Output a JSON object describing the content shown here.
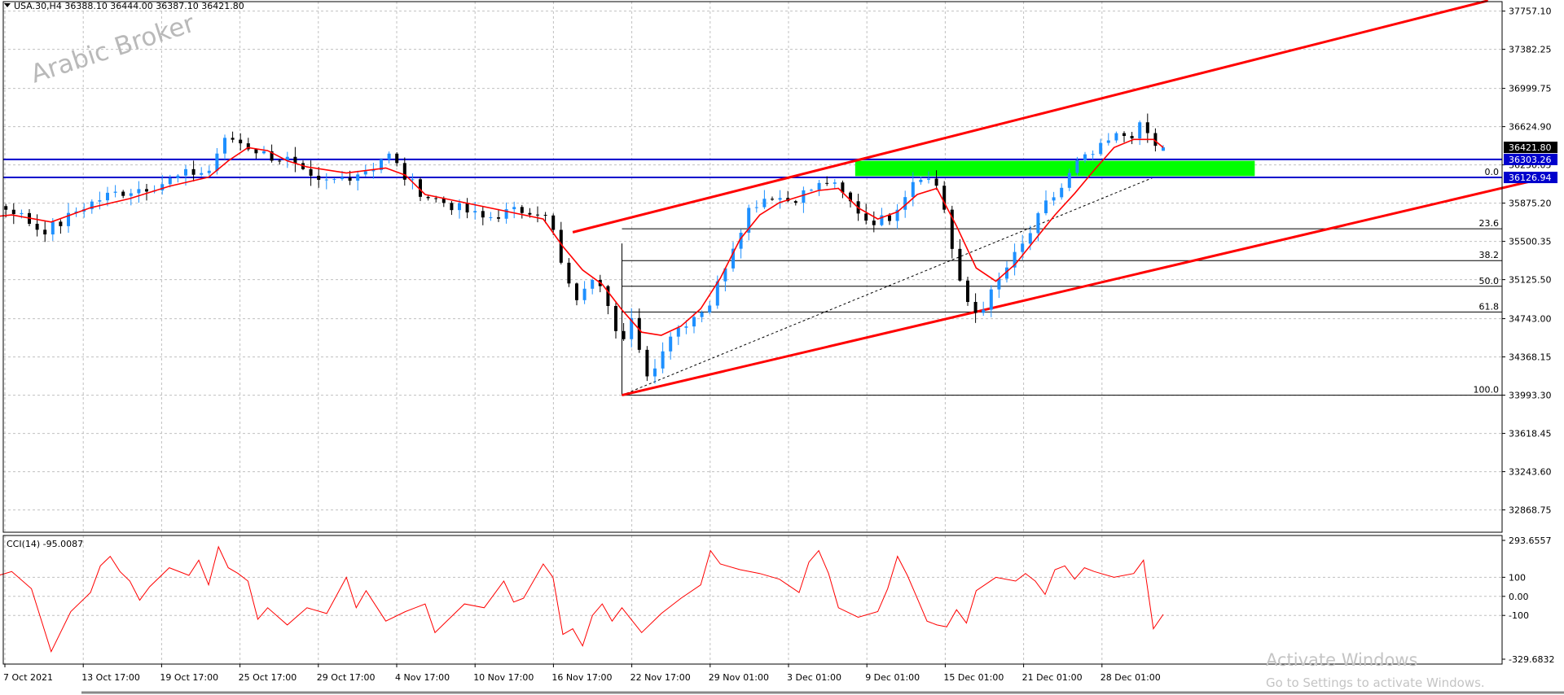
{
  "header": {
    "symbol_line": "USA.30,H4  36388.10 36444.00 36387.10 36421.80",
    "dropdown_icon": "triangle-down-icon"
  },
  "watermark": "Arabic Broker",
  "os_notice": {
    "title": "Activate Windows",
    "subtitle": "Go to Settings to activate Windows."
  },
  "colors": {
    "bull_candle": "#1e90ff",
    "bear_candle": "#000000",
    "moving_average": "#ff0000",
    "trend_channel": "#ff0000",
    "horizontal_levels": "#0000cc",
    "zone": "#00ff00",
    "cci_line": "#ff0000",
    "price_tag_bg": "#0000cc",
    "current_price_tag_bg": "#000000",
    "grid": "#c0c0c0"
  },
  "chart_data": [
    {
      "type": "candlestick",
      "title": "USA.30,H4",
      "timeframe": "H4",
      "ohlc_last": {
        "open": 36388.1,
        "high": 36444.0,
        "low": 36387.1,
        "close": 36421.8
      },
      "ylim": [
        32650,
        37850
      ],
      "y_tick_labels": [
        "37757.10",
        "37382.25",
        "36999.75",
        "36624.90",
        "36250.05",
        "35875.20",
        "35500.35",
        "35125.50",
        "34743.00",
        "34368.15",
        "33993.30",
        "33618.45",
        "33243.60",
        "32868.75"
      ],
      "x_tick_labels": [
        "7 Oct 2021",
        "13 Oct 17:00",
        "19 Oct 17:00",
        "25 Oct 17:00",
        "29 Oct 17:00",
        "4 Nov 17:00",
        "10 Nov 17:00",
        "16 Nov 17:00",
        "22 Nov 17:00",
        "29 Nov 01:00",
        "3 Dec 01:00",
        "9 Dec 01:00",
        "15 Dec 01:00",
        "21 Dec 01:00",
        "28 Dec 01:00"
      ],
      "price_path": [
        [
          0,
          34800
        ],
        [
          3,
          34780
        ],
        [
          5,
          34700
        ],
        [
          6,
          34500
        ],
        [
          7,
          34400
        ],
        [
          8,
          34430
        ],
        [
          10,
          34700
        ],
        [
          11,
          34950
        ],
        [
          12,
          35280
        ],
        [
          14,
          35420
        ],
        [
          16,
          35520
        ],
        [
          19,
          35620
        ],
        [
          22,
          35680
        ],
        [
          26,
          35760
        ],
        [
          28,
          35850
        ],
        [
          30,
          35820
        ],
        [
          33,
          35600
        ],
        [
          35,
          35680
        ],
        [
          37,
          35830
        ],
        [
          40,
          35960
        ],
        [
          43,
          36020
        ],
        [
          45,
          36060
        ],
        [
          48,
          36170
        ],
        [
          50,
          36180
        ],
        [
          51,
          36400
        ],
        [
          52,
          36520
        ],
        [
          53,
          36480
        ],
        [
          54,
          36430
        ],
        [
          56,
          36340
        ],
        [
          58,
          36300
        ],
        [
          60,
          36120
        ],
        [
          61,
          36060
        ],
        [
          63,
          36100
        ],
        [
          65,
          36170
        ],
        [
          67,
          36240
        ],
        [
          68,
          36380
        ],
        [
          69,
          36260
        ],
        [
          70,
          36120
        ],
        [
          72,
          35950
        ],
        [
          74,
          35880
        ],
        [
          76,
          35800
        ],
        [
          78,
          35720
        ],
        [
          80,
          35780
        ],
        [
          83,
          35820
        ],
        [
          84,
          35770
        ],
        [
          85,
          35600
        ],
        [
          86,
          35200
        ],
        [
          87,
          34950
        ],
        [
          88,
          34960
        ],
        [
          89,
          35160
        ],
        [
          90,
          35100
        ],
        [
          91,
          34780
        ],
        [
          92,
          34500
        ],
        [
          93,
          34720
        ],
        [
          94,
          34300
        ],
        [
          95,
          34150
        ],
        [
          96,
          34450
        ],
        [
          97,
          34600
        ],
        [
          99,
          34750
        ],
        [
          101,
          34900
        ],
        [
          103,
          35400
        ],
        [
          104,
          35620
        ],
        [
          105,
          35840
        ],
        [
          107,
          35960
        ],
        [
          109,
          35900
        ],
        [
          111,
          36000
        ],
        [
          113,
          36090
        ],
        [
          115,
          35900
        ],
        [
          117,
          35700
        ],
        [
          119,
          35720
        ],
        [
          121,
          36000
        ],
        [
          122,
          36180
        ],
        [
          124,
          36050
        ],
        [
          125,
          35750
        ],
        [
          126,
          35150
        ],
        [
          127,
          34920
        ],
        [
          128,
          34800
        ],
        [
          129,
          34900
        ],
        [
          131,
          35230
        ],
        [
          133,
          35500
        ],
        [
          135,
          35850
        ],
        [
          137,
          36060
        ],
        [
          138,
          36250
        ],
        [
          140,
          36360
        ],
        [
          142,
          36520
        ],
        [
          144,
          36560
        ],
        [
          145,
          36650
        ],
        [
          146,
          36420
        ],
        [
          147,
          36421.8
        ]
      ],
      "moving_average": [
        [
          0,
          34520
        ],
        [
          5,
          34790
        ],
        [
          8,
          34640
        ],
        [
          10,
          34540
        ],
        [
          13,
          34920
        ],
        [
          16,
          35330
        ],
        [
          20,
          35560
        ],
        [
          26,
          35720
        ],
        [
          30,
          35760
        ],
        [
          34,
          35690
        ],
        [
          38,
          35830
        ],
        [
          42,
          35920
        ],
        [
          46,
          36040
        ],
        [
          50,
          36130
        ],
        [
          52,
          36290
        ],
        [
          54,
          36420
        ],
        [
          56,
          36390
        ],
        [
          58,
          36290
        ],
        [
          60,
          36230
        ],
        [
          64,
          36170
        ],
        [
          68,
          36220
        ],
        [
          70,
          36150
        ],
        [
          72,
          35960
        ],
        [
          76,
          35880
        ],
        [
          80,
          35800
        ],
        [
          84,
          35720
        ],
        [
          86,
          35450
        ],
        [
          88,
          35220
        ],
        [
          90,
          35080
        ],
        [
          92,
          34830
        ],
        [
          94,
          34610
        ],
        [
          96,
          34580
        ],
        [
          98,
          34670
        ],
        [
          100,
          34840
        ],
        [
          102,
          35140
        ],
        [
          104,
          35520
        ],
        [
          106,
          35760
        ],
        [
          108,
          35880
        ],
        [
          110,
          35940
        ],
        [
          112,
          36000
        ],
        [
          114,
          36020
        ],
        [
          116,
          35830
        ],
        [
          118,
          35720
        ],
        [
          120,
          35790
        ],
        [
          122,
          35960
        ],
        [
          124,
          36020
        ],
        [
          126,
          35650
        ],
        [
          128,
          35240
        ],
        [
          130,
          35110
        ],
        [
          132,
          35280
        ],
        [
          134,
          35520
        ],
        [
          136,
          35760
        ],
        [
          138,
          35970
        ],
        [
          140,
          36200
        ],
        [
          142,
          36420
        ],
        [
          144,
          36500
        ],
        [
          146,
          36500
        ],
        [
          147,
          36420
        ]
      ],
      "horizontal_levels": [
        36303.26,
        36126.94
      ],
      "current_price": 36421.8,
      "axis_tags": [
        {
          "label": "36421.80",
          "value": 36421.8
        },
        {
          "label": "36303.26",
          "value": 36303.26
        },
        {
          "label": "36126.94",
          "value": 36126.94
        }
      ],
      "zone": {
        "x_start": 115.7,
        "x_end": 156.3,
        "y_low": 36140,
        "y_high": 36290
      },
      "trend_channel": {
        "upper": [
          [
            87,
            35590
          ],
          [
            180,
            37860
          ]
        ],
        "lower": [
          [
            92,
            33993.3
          ],
          [
            186,
            36126.94
          ]
        ]
      },
      "dashed_trendline": [
        [
          92,
          33993.3
        ],
        [
          146,
          36126.94
        ]
      ],
      "fibonacci": {
        "start_x": 92,
        "levels": [
          {
            "label": "0.0",
            "value": 36126.94
          },
          {
            "label": "23.6",
            "value": 35623.46
          },
          {
            "label": "38.2",
            "value": 35312.03
          },
          {
            "label": "50.0",
            "value": 35060.29
          },
          {
            "label": "61.8",
            "value": 34808.55
          },
          {
            "label": "100.0",
            "value": 33993.3
          }
        ]
      },
      "candle_count": 186
    },
    {
      "type": "line",
      "title": "CCI(14) -95.0087",
      "series_name": "CCI(14)",
      "last_value": -95.0087,
      "ylim": [
        -329.6832,
        293.6557
      ],
      "y_tick_labels": [
        "293.6557",
        "100",
        "0.00",
        "-100",
        "-329.6832"
      ],
      "path": [
        [
          0,
          40
        ],
        [
          2,
          -20
        ],
        [
          4,
          -160
        ],
        [
          6,
          -190
        ],
        [
          7,
          -80
        ],
        [
          8,
          -110
        ],
        [
          10,
          80
        ],
        [
          12,
          190
        ],
        [
          14,
          130
        ],
        [
          16,
          110
        ],
        [
          18,
          150
        ],
        [
          20,
          100
        ],
        [
          22,
          120
        ],
        [
          24,
          80
        ],
        [
          26,
          140
        ],
        [
          28,
          100
        ],
        [
          30,
          130
        ],
        [
          32,
          40
        ],
        [
          34,
          -290
        ],
        [
          36,
          -80
        ],
        [
          38,
          20
        ],
        [
          39,
          160
        ],
        [
          40,
          210
        ],
        [
          41,
          130
        ],
        [
          42,
          80
        ],
        [
          43,
          -20
        ],
        [
          44,
          50
        ],
        [
          46,
          150
        ],
        [
          48,
          110
        ],
        [
          49,
          190
        ],
        [
          50,
          60
        ],
        [
          51,
          260
        ],
        [
          52,
          150
        ],
        [
          53,
          120
        ],
        [
          54,
          80
        ],
        [
          55,
          -120
        ],
        [
          56,
          -60
        ],
        [
          58,
          -150
        ],
        [
          60,
          -60
        ],
        [
          62,
          -90
        ],
        [
          64,
          100
        ],
        [
          65,
          -60
        ],
        [
          66,
          30
        ],
        [
          68,
          -130
        ],
        [
          70,
          -80
        ],
        [
          72,
          -40
        ],
        [
          73,
          -190
        ],
        [
          74,
          -140
        ],
        [
          76,
          -40
        ],
        [
          78,
          -60
        ],
        [
          80,
          80
        ],
        [
          81,
          -30
        ],
        [
          82,
          -10
        ],
        [
          84,
          170
        ],
        [
          85,
          100
        ],
        [
          86,
          -200
        ],
        [
          87,
          -170
        ],
        [
          88,
          -260
        ],
        [
          89,
          -100
        ],
        [
          90,
          -40
        ],
        [
          91,
          -130
        ],
        [
          92,
          -60
        ],
        [
          94,
          -190
        ],
        [
          96,
          -90
        ],
        [
          98,
          -10
        ],
        [
          100,
          60
        ],
        [
          101,
          240
        ],
        [
          102,
          170
        ],
        [
          104,
          140
        ],
        [
          106,
          120
        ],
        [
          108,
          90
        ],
        [
          110,
          20
        ],
        [
          111,
          180
        ],
        [
          112,
          240
        ],
        [
          113,
          120
        ],
        [
          114,
          -60
        ],
        [
          116,
          -110
        ],
        [
          118,
          -80
        ],
        [
          119,
          40
        ],
        [
          120,
          210
        ],
        [
          121,
          110
        ],
        [
          122,
          -10
        ],
        [
          123,
          -130
        ],
        [
          124,
          -150
        ],
        [
          125,
          -160
        ],
        [
          126,
          -70
        ],
        [
          127,
          -140
        ],
        [
          128,
          30
        ],
        [
          130,
          100
        ],
        [
          132,
          80
        ],
        [
          133,
          120
        ],
        [
          134,
          80
        ],
        [
          135,
          10
        ],
        [
          136,
          140
        ],
        [
          137,
          160
        ],
        [
          138,
          90
        ],
        [
          139,
          150
        ],
        [
          140,
          130
        ],
        [
          142,
          100
        ],
        [
          144,
          120
        ],
        [
          145,
          190
        ],
        [
          146,
          -170
        ],
        [
          147,
          -95.0087
        ]
      ]
    }
  ]
}
